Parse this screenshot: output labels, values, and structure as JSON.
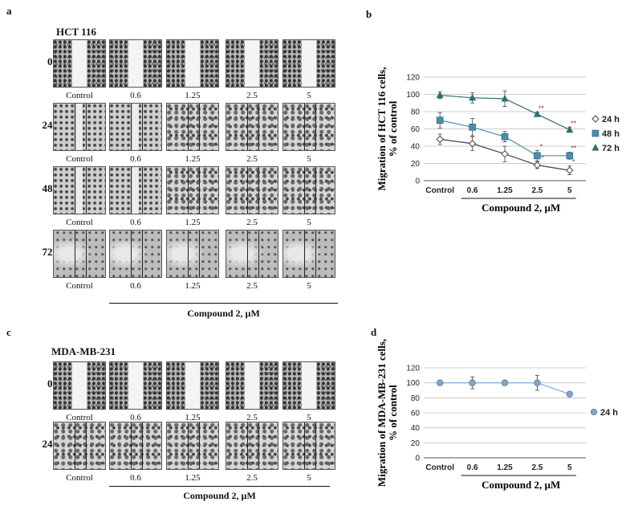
{
  "panel_a": {
    "letter": "a",
    "cell_line": "HCT 116",
    "rows": [
      "0 h",
      "24 h",
      "48 h",
      "72 h"
    ],
    "columns": [
      "Control",
      "0.6",
      "1.25",
      "2.5",
      "5"
    ],
    "compound_label": "Compound 2, µM"
  },
  "panel_c": {
    "letter": "c",
    "cell_line": "MDA-MB-231",
    "rows": [
      "0 h",
      "24 h"
    ],
    "columns": [
      "Control",
      "0.6",
      "1.25",
      "2.5",
      "5"
    ],
    "compound_label": "Compound 2, µM"
  },
  "chart_data": [
    {
      "panel": "b",
      "type": "line",
      "ylabel": "Migration of HCT 116 cells,\n% of control",
      "xlabel": "Compound 2, µM",
      "categories": [
        "Control",
        "0.6",
        "1.25",
        "2.5",
        "5"
      ],
      "ylim": [
        0,
        120
      ],
      "yticks": [
        0,
        20,
        40,
        60,
        80,
        100,
        120
      ],
      "grid": true,
      "legend_position": "right",
      "series": [
        {
          "name": "24 h",
          "marker": "diamond-open",
          "color": "#444444",
          "values": [
            48,
            43,
            31,
            18,
            12
          ],
          "errors": [
            6,
            8,
            9,
            4,
            5
          ],
          "labels": [
            "",
            "",
            "",
            "**",
            "*"
          ]
        },
        {
          "name": "48 h",
          "marker": "square",
          "color": "#4a8db0",
          "values": [
            70,
            62,
            51,
            29,
            29
          ],
          "errors": [
            9,
            10,
            6,
            6,
            4
          ],
          "labels": [
            "",
            "",
            "",
            "*",
            "**"
          ]
        },
        {
          "name": "72 h",
          "marker": "triangle",
          "color": "#2f6f6c",
          "values": [
            99,
            96,
            95,
            77,
            59
          ],
          "errors": [
            4,
            6,
            9,
            2,
            3
          ],
          "labels": [
            "",
            "",
            "",
            "**",
            "**"
          ]
        }
      ]
    },
    {
      "panel": "d",
      "type": "line",
      "ylabel": "Migration of MDA-MB-231 cells,\n% of control",
      "xlabel": "Compound 2, µM",
      "categories": [
        "Control",
        "0.6",
        "1.25",
        "2.5",
        "5"
      ],
      "ylim": [
        0,
        120
      ],
      "yticks": [
        0,
        20,
        40,
        60,
        80,
        100,
        120
      ],
      "grid": true,
      "legend_position": "right",
      "series": [
        {
          "name": "24 h",
          "marker": "circle",
          "color": "#7fa6cf",
          "values": [
            100,
            100,
            100,
            100,
            85
          ],
          "errors": [
            3,
            8,
            2,
            10,
            2
          ],
          "labels": [
            "",
            "",
            "",
            "",
            ""
          ]
        }
      ]
    }
  ],
  "panel_b_letter": "b",
  "panel_d_letter": "d"
}
